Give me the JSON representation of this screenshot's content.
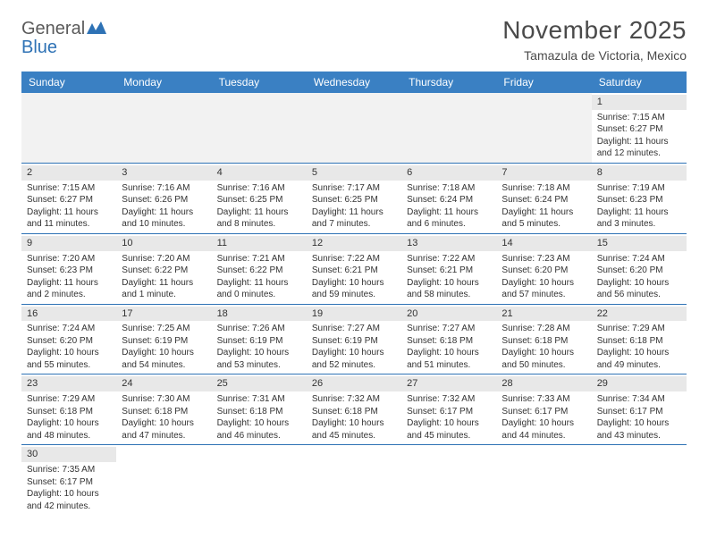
{
  "logo": {
    "text1": "General",
    "text2": "Blue"
  },
  "title": "November 2025",
  "location": "Tamazula de Victoria, Mexico",
  "colors": {
    "header_bg": "#3a80c3",
    "header_text": "#ffffff",
    "border": "#2e72b5",
    "daynum_bg": "#e8e8e8",
    "empty_bg": "#f2f2f2",
    "text": "#333333",
    "logo_gray": "#5a5a5a",
    "logo_blue": "#2e72b5"
  },
  "weekdays": [
    "Sunday",
    "Monday",
    "Tuesday",
    "Wednesday",
    "Thursday",
    "Friday",
    "Saturday"
  ],
  "weeks": [
    [
      null,
      null,
      null,
      null,
      null,
      null,
      {
        "n": "1",
        "sr": "Sunrise: 7:15 AM",
        "ss": "Sunset: 6:27 PM",
        "d1": "Daylight: 11 hours",
        "d2": "and 12 minutes."
      }
    ],
    [
      {
        "n": "2",
        "sr": "Sunrise: 7:15 AM",
        "ss": "Sunset: 6:27 PM",
        "d1": "Daylight: 11 hours",
        "d2": "and 11 minutes."
      },
      {
        "n": "3",
        "sr": "Sunrise: 7:16 AM",
        "ss": "Sunset: 6:26 PM",
        "d1": "Daylight: 11 hours",
        "d2": "and 10 minutes."
      },
      {
        "n": "4",
        "sr": "Sunrise: 7:16 AM",
        "ss": "Sunset: 6:25 PM",
        "d1": "Daylight: 11 hours",
        "d2": "and 8 minutes."
      },
      {
        "n": "5",
        "sr": "Sunrise: 7:17 AM",
        "ss": "Sunset: 6:25 PM",
        "d1": "Daylight: 11 hours",
        "d2": "and 7 minutes."
      },
      {
        "n": "6",
        "sr": "Sunrise: 7:18 AM",
        "ss": "Sunset: 6:24 PM",
        "d1": "Daylight: 11 hours",
        "d2": "and 6 minutes."
      },
      {
        "n": "7",
        "sr": "Sunrise: 7:18 AM",
        "ss": "Sunset: 6:24 PM",
        "d1": "Daylight: 11 hours",
        "d2": "and 5 minutes."
      },
      {
        "n": "8",
        "sr": "Sunrise: 7:19 AM",
        "ss": "Sunset: 6:23 PM",
        "d1": "Daylight: 11 hours",
        "d2": "and 3 minutes."
      }
    ],
    [
      {
        "n": "9",
        "sr": "Sunrise: 7:20 AM",
        "ss": "Sunset: 6:23 PM",
        "d1": "Daylight: 11 hours",
        "d2": "and 2 minutes."
      },
      {
        "n": "10",
        "sr": "Sunrise: 7:20 AM",
        "ss": "Sunset: 6:22 PM",
        "d1": "Daylight: 11 hours",
        "d2": "and 1 minute."
      },
      {
        "n": "11",
        "sr": "Sunrise: 7:21 AM",
        "ss": "Sunset: 6:22 PM",
        "d1": "Daylight: 11 hours",
        "d2": "and 0 minutes."
      },
      {
        "n": "12",
        "sr": "Sunrise: 7:22 AM",
        "ss": "Sunset: 6:21 PM",
        "d1": "Daylight: 10 hours",
        "d2": "and 59 minutes."
      },
      {
        "n": "13",
        "sr": "Sunrise: 7:22 AM",
        "ss": "Sunset: 6:21 PM",
        "d1": "Daylight: 10 hours",
        "d2": "and 58 minutes."
      },
      {
        "n": "14",
        "sr": "Sunrise: 7:23 AM",
        "ss": "Sunset: 6:20 PM",
        "d1": "Daylight: 10 hours",
        "d2": "and 57 minutes."
      },
      {
        "n": "15",
        "sr": "Sunrise: 7:24 AM",
        "ss": "Sunset: 6:20 PM",
        "d1": "Daylight: 10 hours",
        "d2": "and 56 minutes."
      }
    ],
    [
      {
        "n": "16",
        "sr": "Sunrise: 7:24 AM",
        "ss": "Sunset: 6:20 PM",
        "d1": "Daylight: 10 hours",
        "d2": "and 55 minutes."
      },
      {
        "n": "17",
        "sr": "Sunrise: 7:25 AM",
        "ss": "Sunset: 6:19 PM",
        "d1": "Daylight: 10 hours",
        "d2": "and 54 minutes."
      },
      {
        "n": "18",
        "sr": "Sunrise: 7:26 AM",
        "ss": "Sunset: 6:19 PM",
        "d1": "Daylight: 10 hours",
        "d2": "and 53 minutes."
      },
      {
        "n": "19",
        "sr": "Sunrise: 7:27 AM",
        "ss": "Sunset: 6:19 PM",
        "d1": "Daylight: 10 hours",
        "d2": "and 52 minutes."
      },
      {
        "n": "20",
        "sr": "Sunrise: 7:27 AM",
        "ss": "Sunset: 6:18 PM",
        "d1": "Daylight: 10 hours",
        "d2": "and 51 minutes."
      },
      {
        "n": "21",
        "sr": "Sunrise: 7:28 AM",
        "ss": "Sunset: 6:18 PM",
        "d1": "Daylight: 10 hours",
        "d2": "and 50 minutes."
      },
      {
        "n": "22",
        "sr": "Sunrise: 7:29 AM",
        "ss": "Sunset: 6:18 PM",
        "d1": "Daylight: 10 hours",
        "d2": "and 49 minutes."
      }
    ],
    [
      {
        "n": "23",
        "sr": "Sunrise: 7:29 AM",
        "ss": "Sunset: 6:18 PM",
        "d1": "Daylight: 10 hours",
        "d2": "and 48 minutes."
      },
      {
        "n": "24",
        "sr": "Sunrise: 7:30 AM",
        "ss": "Sunset: 6:18 PM",
        "d1": "Daylight: 10 hours",
        "d2": "and 47 minutes."
      },
      {
        "n": "25",
        "sr": "Sunrise: 7:31 AM",
        "ss": "Sunset: 6:18 PM",
        "d1": "Daylight: 10 hours",
        "d2": "and 46 minutes."
      },
      {
        "n": "26",
        "sr": "Sunrise: 7:32 AM",
        "ss": "Sunset: 6:18 PM",
        "d1": "Daylight: 10 hours",
        "d2": "and 45 minutes."
      },
      {
        "n": "27",
        "sr": "Sunrise: 7:32 AM",
        "ss": "Sunset: 6:17 PM",
        "d1": "Daylight: 10 hours",
        "d2": "and 45 minutes."
      },
      {
        "n": "28",
        "sr": "Sunrise: 7:33 AM",
        "ss": "Sunset: 6:17 PM",
        "d1": "Daylight: 10 hours",
        "d2": "and 44 minutes."
      },
      {
        "n": "29",
        "sr": "Sunrise: 7:34 AM",
        "ss": "Sunset: 6:17 PM",
        "d1": "Daylight: 10 hours",
        "d2": "and 43 minutes."
      }
    ],
    [
      {
        "n": "30",
        "sr": "Sunrise: 7:35 AM",
        "ss": "Sunset: 6:17 PM",
        "d1": "Daylight: 10 hours",
        "d2": "and 42 minutes."
      },
      null,
      null,
      null,
      null,
      null,
      null
    ]
  ]
}
